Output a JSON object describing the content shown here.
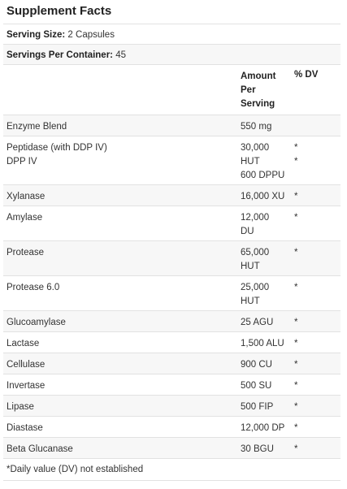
{
  "title": "Supplement Facts",
  "serving_size": {
    "label": "Serving Size:",
    "value": "2 Capsules"
  },
  "servings_per_container": {
    "label": "Servings Per Container:",
    "value": "45"
  },
  "columns": {
    "amount": [
      "Amount",
      "Per",
      "Serving"
    ],
    "dv": "% DV"
  },
  "rows": [
    {
      "name": [
        "Enzyme Blend"
      ],
      "amount": [
        "550 mg"
      ],
      "dv": [
        ""
      ]
    },
    {
      "name": [
        "Peptidase (with DDP IV)",
        "DPP IV"
      ],
      "amount": [
        "30,000",
        "HUT",
        "600 DPPU"
      ],
      "dv": [
        "*",
        "*"
      ]
    },
    {
      "name": [
        "Xylanase"
      ],
      "amount": [
        "16,000 XU"
      ],
      "dv": [
        "*"
      ]
    },
    {
      "name": [
        "Amylase"
      ],
      "amount": [
        "12,000",
        "DU"
      ],
      "dv": [
        "*"
      ]
    },
    {
      "name": [
        "Protease"
      ],
      "amount": [
        "65,000",
        "HUT"
      ],
      "dv": [
        "*"
      ]
    },
    {
      "name": [
        "Protease 6.0"
      ],
      "amount": [
        "25,000",
        "HUT"
      ],
      "dv": [
        "*"
      ]
    },
    {
      "name": [
        "Glucoamylase"
      ],
      "amount": [
        "25 AGU"
      ],
      "dv": [
        "*"
      ]
    },
    {
      "name": [
        "Lactase"
      ],
      "amount": [
        "1,500 ALU"
      ],
      "dv": [
        "*"
      ]
    },
    {
      "name": [
        "Cellulase"
      ],
      "amount": [
        "900 CU"
      ],
      "dv": [
        "*"
      ]
    },
    {
      "name": [
        "Invertase"
      ],
      "amount": [
        "500 SU"
      ],
      "dv": [
        "*"
      ]
    },
    {
      "name": [
        "Lipase"
      ],
      "amount": [
        "500 FIP"
      ],
      "dv": [
        "*"
      ]
    },
    {
      "name": [
        "Diastase"
      ],
      "amount": [
        "12,000 DP"
      ],
      "dv": [
        "*"
      ]
    },
    {
      "name": [
        "Beta Glucanase"
      ],
      "amount": [
        "30 BGU"
      ],
      "dv": [
        "*"
      ]
    }
  ],
  "footnote": "*Daily value (DV) not established"
}
